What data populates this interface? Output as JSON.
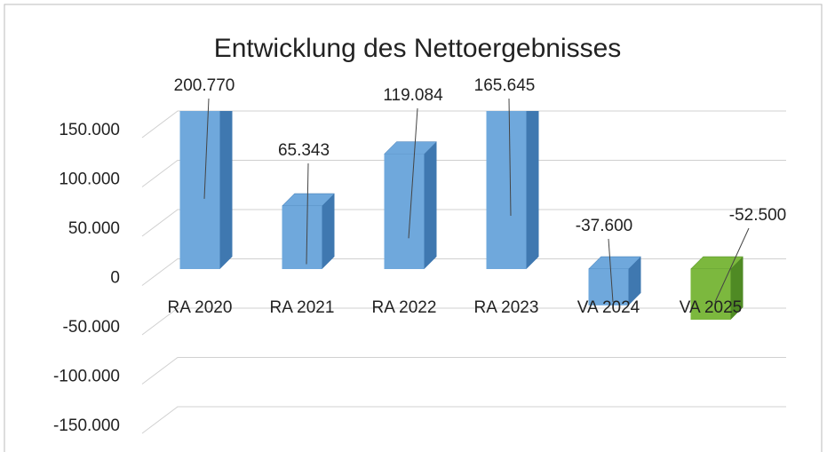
{
  "chart_data": {
    "type": "bar3d",
    "title": "Entwicklung des Nettoergebnisses",
    "categories": [
      "RA 2020",
      "RA 2021",
      "RA 2022",
      "RA 2023",
      "VA 2024",
      "VA 2025"
    ],
    "values": [
      200770,
      65343,
      119084,
      165645,
      -37600,
      -52500
    ],
    "value_labels": [
      "200.770",
      "65.343",
      "119.084",
      "165.645",
      "-37.600",
      "-52.500"
    ],
    "colors": [
      "#6fa8dc",
      "#6fa8dc",
      "#6fa8dc",
      "#6fa8dc",
      "#6fa8dc",
      "#7cb83e"
    ],
    "ylim": [
      -150000,
      150000
    ],
    "yticks": [
      {
        "value": -150000,
        "label": "-150.000"
      },
      {
        "value": -100000,
        "label": "-100.000"
      },
      {
        "value": -50000,
        "label": "-50.000"
      },
      0,
      {
        "value": 50000,
        "label": "50.000"
      },
      {
        "value": 100000,
        "label": "100.000"
      },
      {
        "value": 150000,
        "label": "150.000"
      }
    ],
    "grid": true
  }
}
